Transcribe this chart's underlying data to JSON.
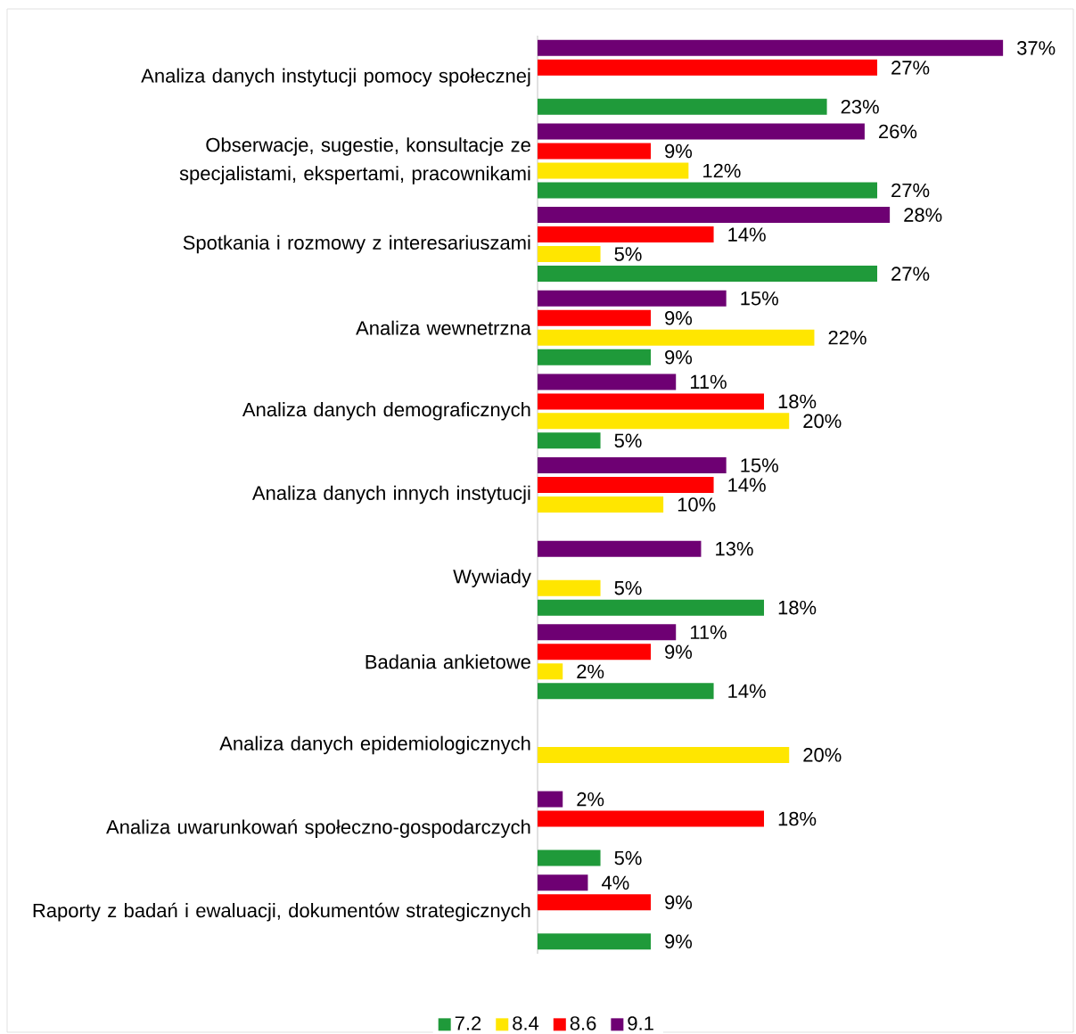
{
  "chart_data": {
    "type": "bar",
    "orientation": "horizontal",
    "legend": "bottom",
    "categories": [
      "Analiza danych instytucji pomocy społecznej",
      "Obserwacje, sugestie, konsultacje ze specjalistami, ekspertami, pracownikami",
      "Spotkania i rozmowy z interesariuszami",
      "Analiza wewnetrzna",
      "Analiza danych demograficznych",
      "Analiza danych innych instytucji",
      "Wywiady",
      "Badania ankietowe",
      "Analiza danych epidemiologicznych",
      "Analiza uwarunkowań społeczno-gospodarczych",
      "Raporty z badań i ewaluacji, dokumentów strategicznych"
    ],
    "series": [
      {
        "name": "7.2",
        "color": "#1f9a3a",
        "values": [
          23,
          27,
          27,
          9,
          5,
          null,
          18,
          14,
          null,
          5,
          9
        ],
        "value_labels": [
          "23%",
          "27%",
          "27%",
          "9%",
          "5%",
          null,
          "18%",
          "14%",
          null,
          "5%",
          "9%"
        ]
      },
      {
        "name": "8.4",
        "color": "#ffe600",
        "values": [
          null,
          12,
          5,
          22,
          20,
          10,
          5,
          2,
          20,
          null,
          null
        ],
        "value_labels": [
          null,
          "12%",
          "5%",
          "22%",
          "20%",
          "10%",
          "5%",
          "2%",
          "20%",
          null,
          null
        ]
      },
      {
        "name": "8.6",
        "color": "#ff0000",
        "values": [
          27,
          9,
          14,
          9,
          18,
          14,
          null,
          9,
          null,
          18,
          9
        ],
        "value_labels": [
          "27%",
          "9%",
          "14%",
          "9%",
          "18%",
          "14%",
          null,
          "9%",
          null,
          "18%",
          "9%"
        ]
      },
      {
        "name": "9.1",
        "color": "#6e0073",
        "values": [
          37,
          26,
          28,
          15,
          11,
          15,
          13,
          11,
          null,
          2,
          4
        ],
        "value_labels": [
          "37%",
          "26%",
          "28%",
          "15%",
          "11%",
          "15%",
          "13%",
          "11%",
          null,
          "2%",
          "4%"
        ]
      }
    ]
  }
}
